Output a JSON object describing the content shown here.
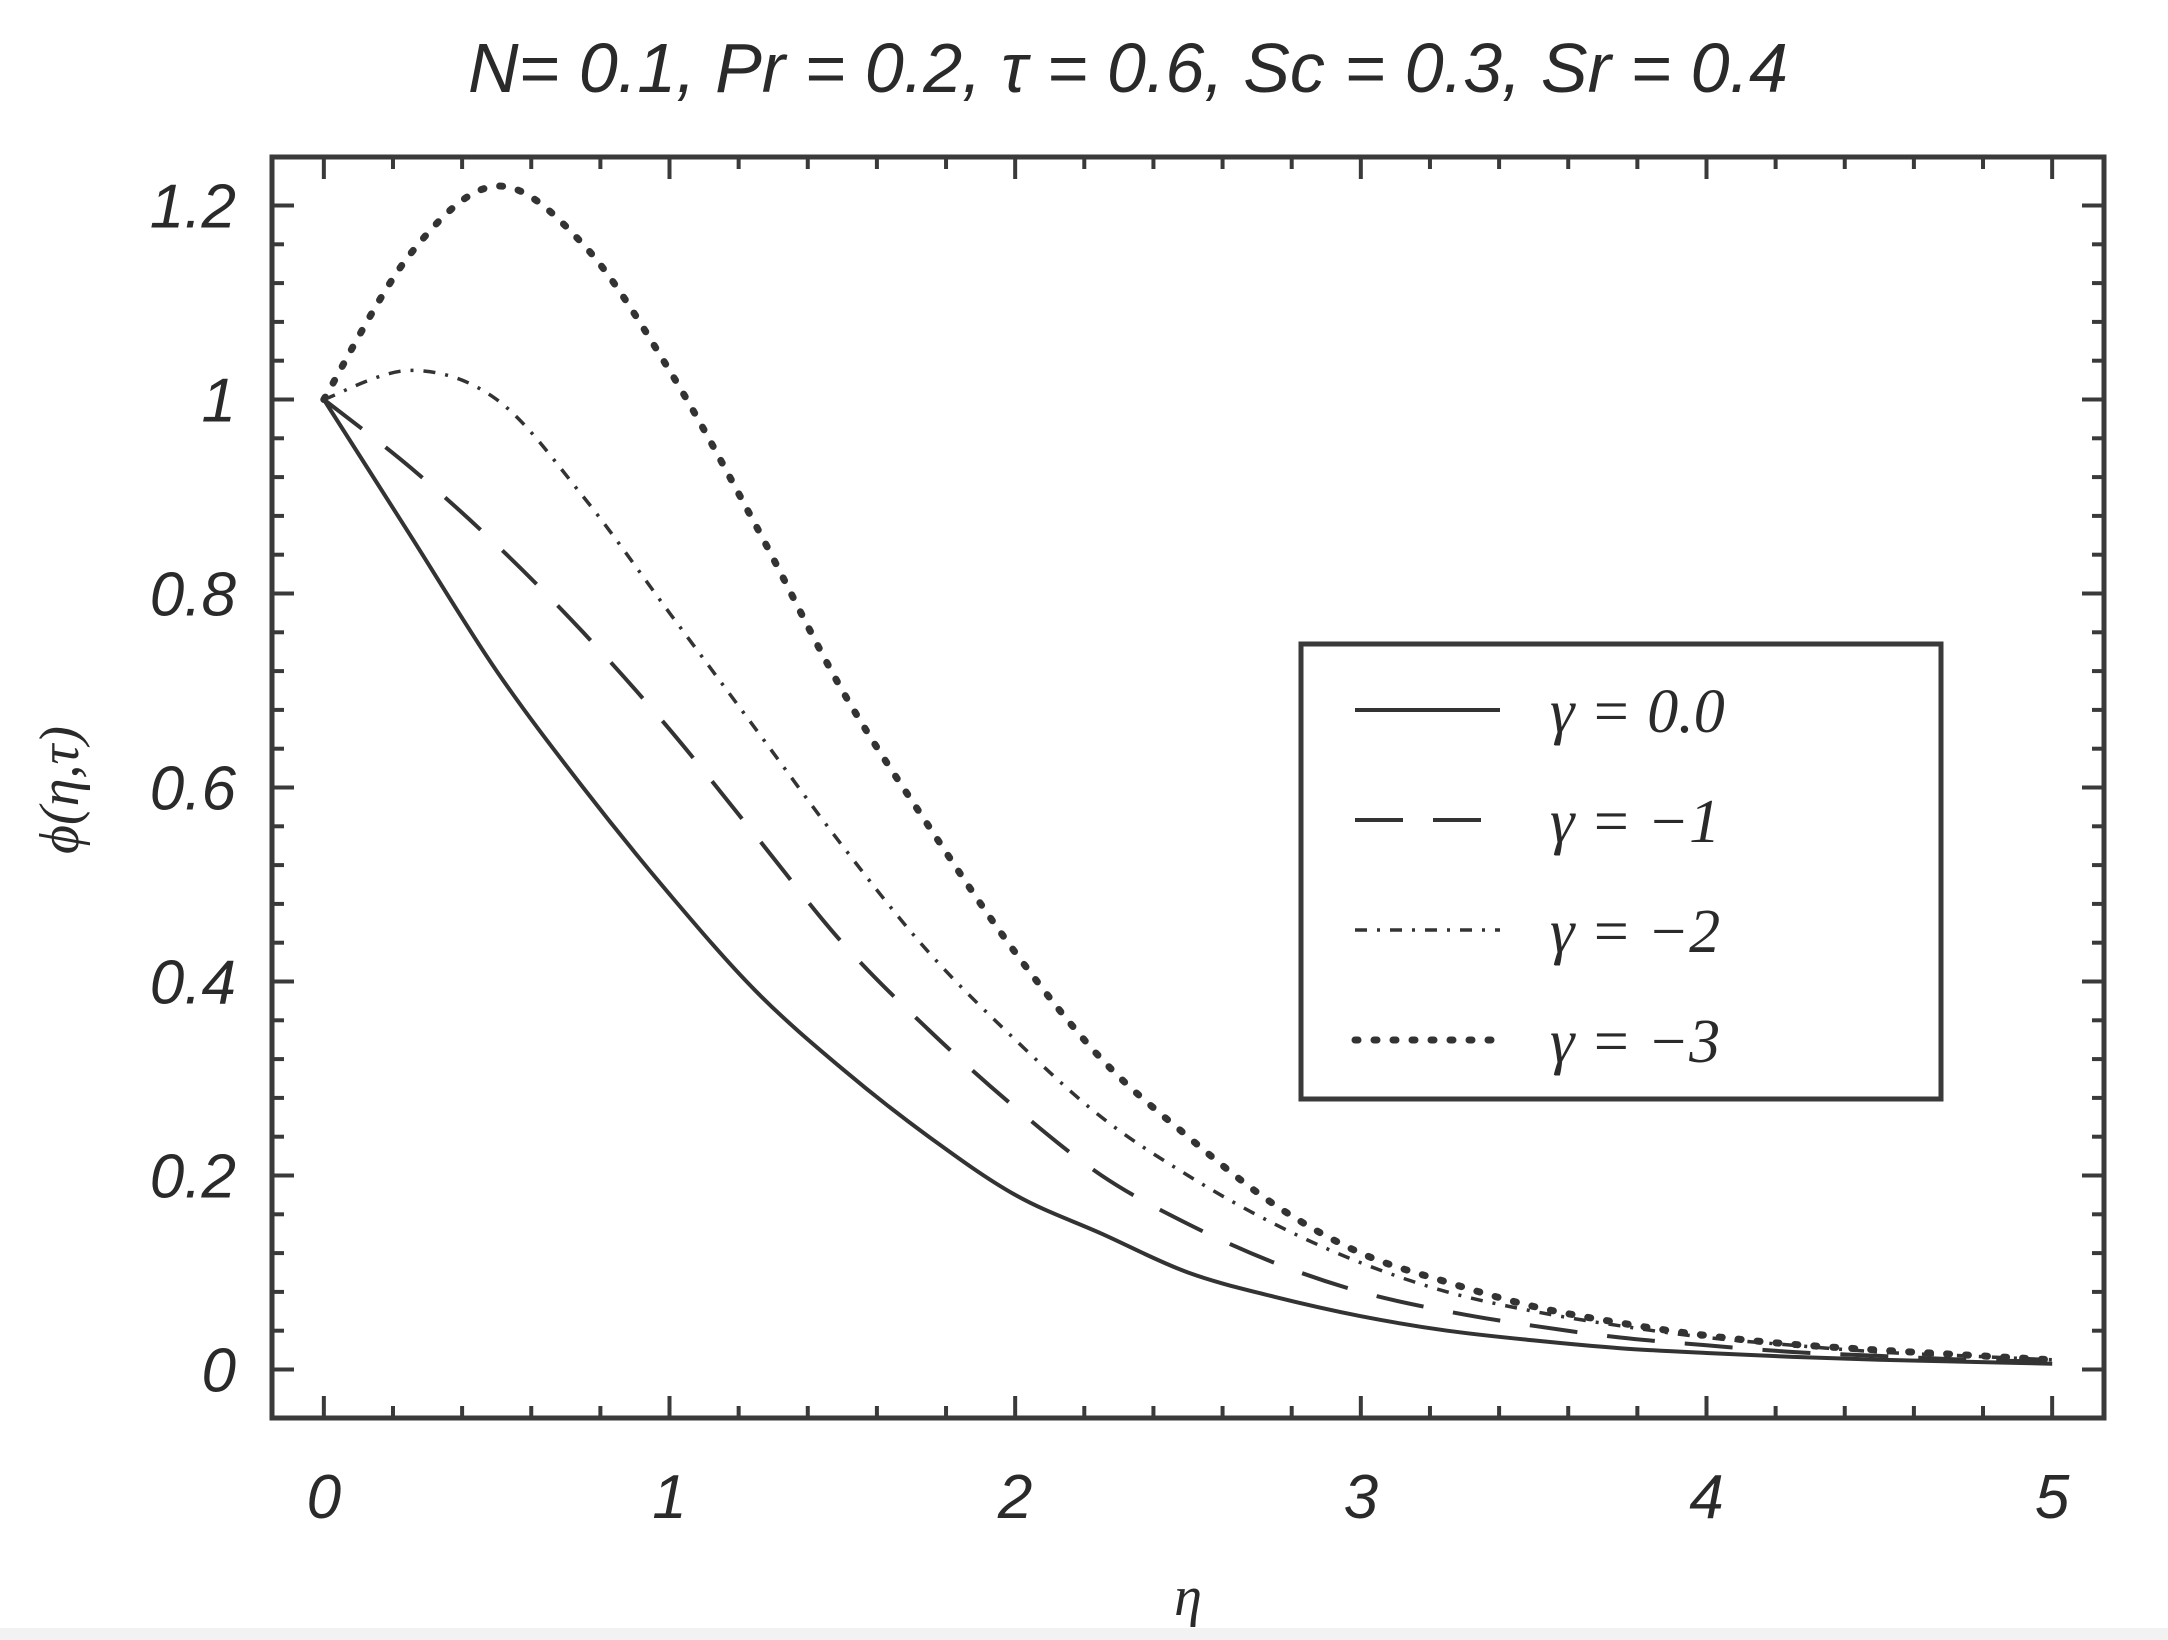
{
  "chart_data": {
    "type": "line",
    "title": "N= 0.1, Pr = 0.2, τ = 0.6, Sc = 0.3, Sr = 0.4",
    "xlabel": "η",
    "ylabel": "ϕ(η,τ)",
    "xlim": [
      -0.15,
      5.15
    ],
    "ylim": [
      -0.05,
      1.25
    ],
    "xticks": [
      0,
      1,
      2,
      3,
      4,
      5
    ],
    "xtick_labels": [
      "0",
      "1",
      "2",
      "3",
      "4",
      "5"
    ],
    "yticks": [
      0,
      0.2,
      0.4,
      0.6,
      0.8,
      1,
      1.2
    ],
    "ytick_labels": [
      "0",
      "0.2",
      "0.4",
      "0.6",
      "0.8",
      "1",
      "1.2"
    ],
    "grid": false,
    "legend_position": "center-right",
    "x": [
      0,
      0.25,
      0.5,
      0.75,
      1,
      1.25,
      1.5,
      1.75,
      2,
      2.25,
      2.5,
      2.75,
      3,
      3.25,
      3.5,
      3.75,
      4,
      4.25,
      4.5,
      4.75,
      5
    ],
    "series": [
      {
        "name": "γ = 0.0",
        "style": "solid",
        "values": [
          1.0,
          0.86,
          0.72,
          0.6,
          0.49,
          0.39,
          0.31,
          0.24,
          0.18,
          0.14,
          0.1,
          0.075,
          0.055,
          0.04,
          0.03,
          0.022,
          0.017,
          0.013,
          0.01,
          0.008,
          0.006
        ]
      },
      {
        "name": "γ = −1",
        "style": "dashed",
        "values": [
          1.0,
          0.93,
          0.85,
          0.76,
          0.66,
          0.55,
          0.44,
          0.35,
          0.27,
          0.2,
          0.15,
          0.11,
          0.08,
          0.06,
          0.045,
          0.033,
          0.025,
          0.018,
          0.014,
          0.01,
          0.008
        ]
      },
      {
        "name": "γ = −2",
        "style": "dash-dot",
        "values": [
          1.0,
          1.03,
          1.0,
          0.9,
          0.78,
          0.66,
          0.54,
          0.43,
          0.34,
          0.26,
          0.2,
          0.15,
          0.11,
          0.08,
          0.06,
          0.045,
          0.033,
          0.025,
          0.018,
          0.014,
          0.01
        ]
      },
      {
        "name": "γ = −3",
        "style": "dotted",
        "values": [
          1.0,
          1.15,
          1.22,
          1.16,
          1.03,
          0.87,
          0.7,
          0.56,
          0.43,
          0.32,
          0.24,
          0.17,
          0.12,
          0.09,
          0.065,
          0.048,
          0.035,
          0.026,
          0.02,
          0.015,
          0.01
        ]
      }
    ]
  },
  "colors": {
    "line": "#333333",
    "frame": "#3a3a3a",
    "text": "#2a2a2a"
  }
}
